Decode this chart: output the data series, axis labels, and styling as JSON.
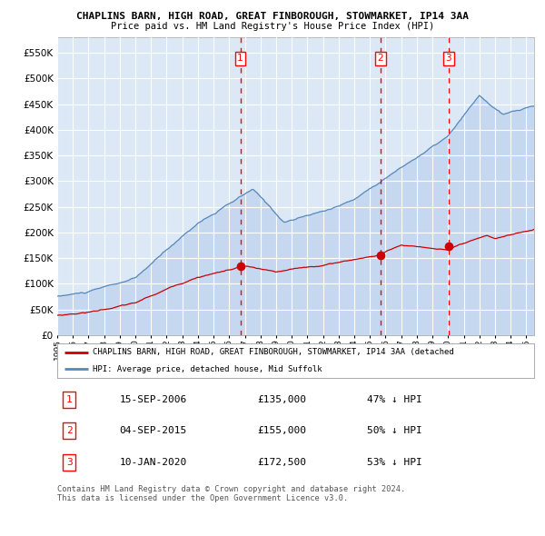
{
  "title1": "CHAPLINS BARN, HIGH ROAD, GREAT FINBOROUGH, STOWMARKET, IP14 3AA",
  "title2": "Price paid vs. HM Land Registry's House Price Index (HPI)",
  "plot_bg": "#dce8f5",
  "grid_color": "#ffffff",
  "red_line_color": "#cc0000",
  "blue_line_color": "#5588bb",
  "blue_fill_color": "#c5d8f0",
  "ylim": [
    0,
    580000
  ],
  "yticks": [
    0,
    50000,
    100000,
    150000,
    200000,
    250000,
    300000,
    350000,
    400000,
    450000,
    500000,
    550000
  ],
  "ytick_labels": [
    "£0",
    "£50K",
    "£100K",
    "£150K",
    "£200K",
    "£250K",
    "£300K",
    "£350K",
    "£400K",
    "£450K",
    "£500K",
    "£550K"
  ],
  "sale_prices": [
    135000,
    155000,
    172500
  ],
  "sale_hpi_pct": [
    "47% ↓ HPI",
    "50% ↓ HPI",
    "53% ↓ HPI"
  ],
  "vline_years": [
    2006.71,
    2015.67,
    2020.03
  ],
  "legend_red": "CHAPLINS BARN, HIGH ROAD, GREAT FINBOROUGH, STOWMARKET, IP14 3AA (detached",
  "legend_blue": "HPI: Average price, detached house, Mid Suffolk",
  "footnote": "Contains HM Land Registry data © Crown copyright and database right 2024.\nThis data is licensed under the Open Government Licence v3.0.",
  "table_rows": [
    [
      "1",
      "15-SEP-2006",
      "£135,000",
      "47% ↓ HPI"
    ],
    [
      "2",
      "04-SEP-2015",
      "£155,000",
      "50% ↓ HPI"
    ],
    [
      "3",
      "10-JAN-2020",
      "£172,500",
      "53% ↓ HPI"
    ]
  ]
}
